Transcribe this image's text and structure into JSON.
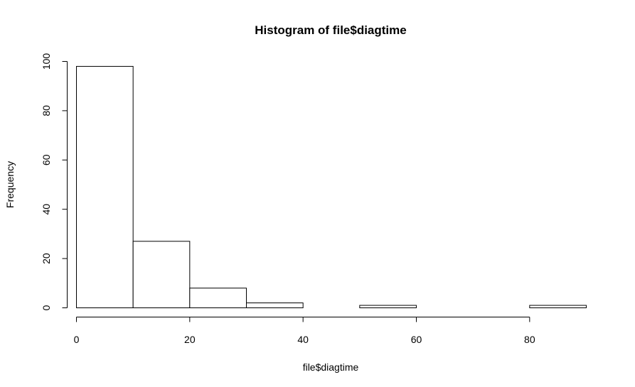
{
  "chart_data": {
    "type": "bar",
    "title": "Histogram of file$diagtime",
    "xlabel": "file$diagtime",
    "ylabel": "Frequency",
    "bins": [
      {
        "start": 0,
        "end": 10,
        "count": 98
      },
      {
        "start": 10,
        "end": 20,
        "count": 27
      },
      {
        "start": 20,
        "end": 30,
        "count": 8
      },
      {
        "start": 30,
        "end": 40,
        "count": 2
      },
      {
        "start": 40,
        "end": 50,
        "count": 0
      },
      {
        "start": 50,
        "end": 60,
        "count": 1
      },
      {
        "start": 60,
        "end": 70,
        "count": 0
      },
      {
        "start": 70,
        "end": 80,
        "count": 0
      },
      {
        "start": 80,
        "end": 90,
        "count": 1
      }
    ],
    "xlim": [
      0,
      90
    ],
    "ylim": [
      0,
      100
    ],
    "xticks": [
      "0",
      "20",
      "40",
      "60",
      "80"
    ],
    "yticks": [
      "0",
      "20",
      "40",
      "60",
      "80",
      "100"
    ],
    "grid": false,
    "colors": {
      "bar_fill": "#ffffff",
      "bar_stroke": "#000000",
      "axis": "#000000"
    }
  }
}
